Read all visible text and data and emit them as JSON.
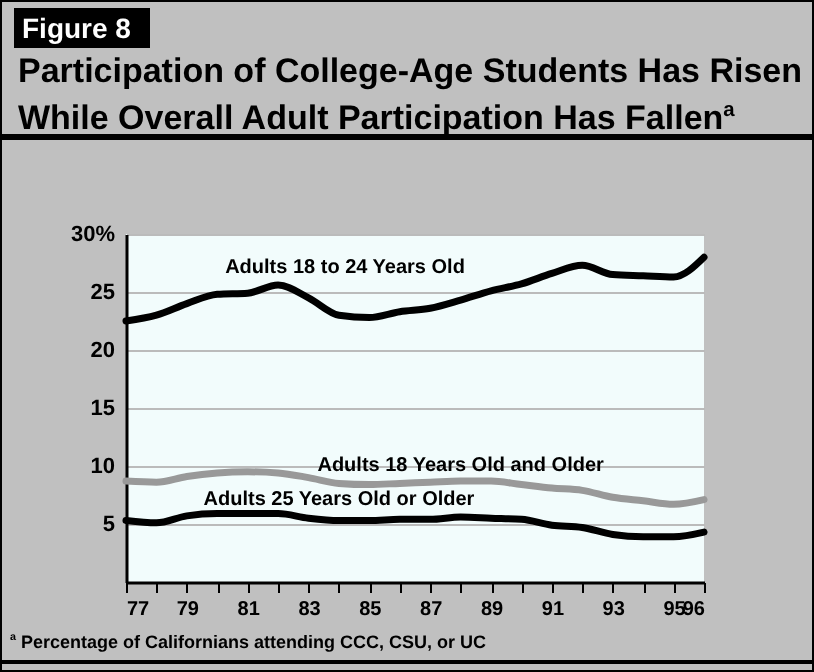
{
  "chart_data": {
    "type": "line",
    "title": "Participation of College-Age Students Has Risen While Overall Adult Participation Has Fallen$^{a}$",
    "annotations": [
      "Figure 8",
      "$^{a}$ Percentage of Californians attending CCC, CSU, or UC"
    ],
    "x": [
      77,
      78,
      79,
      80,
      81,
      82,
      83,
      84,
      85,
      86,
      87,
      88,
      89,
      90,
      91,
      92,
      93,
      94,
      95,
      96
    ],
    "series": [
      {
        "name": "Adults 18 to 24 Years Old",
        "color": "#000000",
        "values": [
          22.5,
          23.0,
          24.0,
          24.8,
          24.9,
          25.6,
          24.5,
          23.0,
          22.8,
          23.3,
          23.6,
          24.3,
          25.1,
          25.7,
          26.6,
          27.3,
          26.5,
          26.4,
          26.3,
          28.0
        ]
      },
      {
        "name": "Adults 18 Years Old and Older",
        "color": "#999999",
        "values": [
          8.7,
          8.6,
          9.1,
          9.4,
          9.5,
          9.4,
          9.0,
          8.5,
          8.4,
          8.5,
          8.6,
          8.7,
          8.7,
          8.4,
          8.1,
          7.9,
          7.3,
          7.0,
          6.7,
          7.1
        ]
      },
      {
        "name": "Adults 25 Years Old or Older",
        "color": "#000000",
        "values": [
          5.3,
          5.1,
          5.7,
          5.9,
          5.9,
          5.9,
          5.5,
          5.3,
          5.3,
          5.4,
          5.4,
          5.6,
          5.5,
          5.4,
          4.9,
          4.7,
          4.1,
          3.9,
          3.9,
          4.3
        ]
      }
    ],
    "xlim": [
      77,
      96
    ],
    "xticks": [
      77,
      {
        "value": 78,
        "label": null
      },
      79,
      {
        "value": 80,
        "label": null
      },
      81,
      {
        "value": 82,
        "label": null
      },
      83,
      {
        "value": 84,
        "label": null
      },
      85,
      {
        "value": 86,
        "label": null
      },
      87,
      {
        "value": 88,
        "label": null
      },
      89,
      {
        "value": 90,
        "label": null
      },
      91,
      {
        "value": 92,
        "label": null
      },
      93,
      {
        "value": 94,
        "label": null
      },
      95,
      96
    ],
    "ylim": [
      0,
      30
    ],
    "yticks": [
      5,
      10,
      15,
      20,
      25,
      {
        "value": 30,
        "label": "30%"
      }
    ],
    "grid": "y",
    "marker": "none",
    "line_style": "solid"
  }
}
